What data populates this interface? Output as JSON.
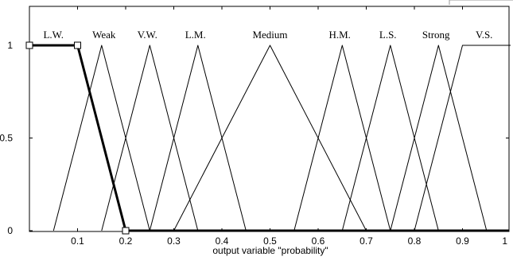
{
  "chart_data": {
    "type": "line",
    "xlabel": "output variable \"probability\"",
    "ylabel": "",
    "title": "",
    "xlim": [
      0,
      1
    ],
    "ylim": [
      0,
      1
    ],
    "xticks": [
      {
        "value": 0.1,
        "label": "0.1"
      },
      {
        "value": 0.2,
        "label": "0.2"
      },
      {
        "value": 0.3,
        "label": "0.3"
      },
      {
        "value": 0.4,
        "label": "0.4"
      },
      {
        "value": 0.5,
        "label": "0.5"
      },
      {
        "value": 0.6,
        "label": "0.6"
      },
      {
        "value": 0.7,
        "label": "0.7"
      },
      {
        "value": 0.8,
        "label": "0.8"
      },
      {
        "value": 0.9,
        "label": "0.9"
      },
      {
        "value": 1.0,
        "label": "1"
      }
    ],
    "yticks": [
      {
        "value": 0,
        "label": "0"
      },
      {
        "value": 0.5,
        "label": "0.5"
      },
      {
        "value": 1,
        "label": "1"
      }
    ],
    "grid": false,
    "series": [
      {
        "name": "L.W.",
        "points": [
          [
            0,
            1
          ],
          [
            0.1,
            1
          ],
          [
            0.2,
            0
          ]
        ],
        "label_x": 0.05,
        "selected": true,
        "color": "#000000"
      },
      {
        "name": "Weak",
        "points": [
          [
            0.05,
            0
          ],
          [
            0.15,
            1
          ],
          [
            0.25,
            0
          ]
        ],
        "label_x": 0.155,
        "color": "#000000"
      },
      {
        "name": "V.W.",
        "points": [
          [
            0.15,
            0
          ],
          [
            0.25,
            1
          ],
          [
            0.35,
            0
          ]
        ],
        "label_x": 0.245,
        "color": "#000000"
      },
      {
        "name": "L.M.",
        "points": [
          [
            0.25,
            0
          ],
          [
            0.35,
            1
          ],
          [
            0.45,
            0
          ]
        ],
        "label_x": 0.345,
        "color": "#000000"
      },
      {
        "name": "Medium",
        "points": [
          [
            0.3,
            0
          ],
          [
            0.5,
            1
          ],
          [
            0.7,
            0
          ]
        ],
        "label_x": 0.5,
        "color": "#000000"
      },
      {
        "name": "H.M.",
        "points": [
          [
            0.55,
            0
          ],
          [
            0.65,
            1
          ],
          [
            0.75,
            0
          ]
        ],
        "label_x": 0.645,
        "color": "#000000"
      },
      {
        "name": "L.S.",
        "points": [
          [
            0.65,
            0
          ],
          [
            0.75,
            1
          ],
          [
            0.85,
            0
          ]
        ],
        "label_x": 0.745,
        "color": "#000000"
      },
      {
        "name": "Strong",
        "points": [
          [
            0.75,
            0
          ],
          [
            0.85,
            1
          ],
          [
            0.95,
            0
          ]
        ],
        "label_x": 0.845,
        "color": "#000000"
      },
      {
        "name": "V.S.",
        "points": [
          [
            0.8,
            0
          ],
          [
            0.9,
            1
          ],
          [
            1.0,
            1
          ]
        ],
        "label_x": 0.945,
        "color": "#000000"
      }
    ]
  }
}
